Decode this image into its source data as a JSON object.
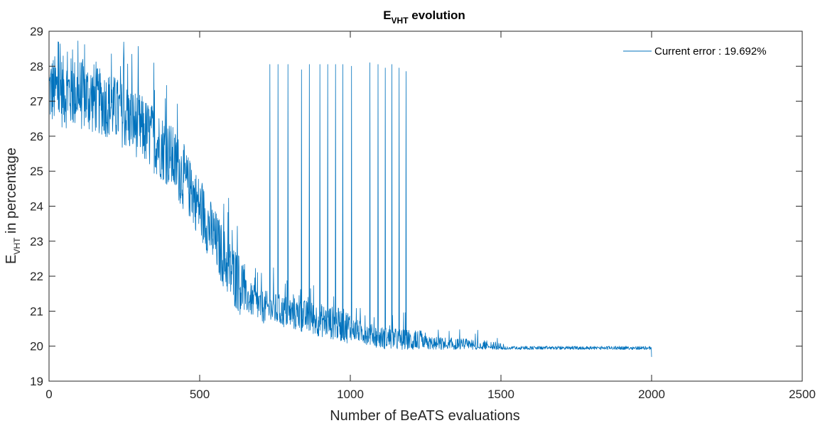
{
  "chart_data": {
    "type": "line",
    "title": {
      "main": "E",
      "sub": "VHT",
      "rest": " evolution"
    },
    "xlabel": "Number of BeATS evaluations",
    "ylabel": {
      "main": "E",
      "sub": "VHT",
      "rest": " in percentage"
    },
    "xlim": [
      0,
      2500
    ],
    "ylim": [
      19,
      29
    ],
    "xticks": [
      0,
      500,
      1000,
      1500,
      2000,
      2500
    ],
    "yticks": [
      19,
      20,
      21,
      22,
      23,
      24,
      25,
      26,
      27,
      28,
      29
    ],
    "grid": false,
    "legend": {
      "position": "top-right",
      "label": "Current error : 19.692%"
    },
    "series": [
      {
        "name": "Current error : 19.692%",
        "color": "#0072BD",
        "x_range": [
          1,
          2000
        ],
        "trend": [
          [
            0,
            27.0
          ],
          [
            100,
            26.9
          ],
          [
            200,
            26.6
          ],
          [
            300,
            26.0
          ],
          [
            400,
            25.2
          ],
          [
            450,
            24.5
          ],
          [
            500,
            23.7
          ],
          [
            550,
            22.8
          ],
          [
            600,
            21.9
          ],
          [
            650,
            21.3
          ],
          [
            700,
            21.0
          ],
          [
            800,
            20.8
          ],
          [
            900,
            20.6
          ],
          [
            1000,
            20.4
          ],
          [
            1100,
            20.15
          ],
          [
            1200,
            20.05
          ],
          [
            1300,
            20.0
          ],
          [
            1400,
            19.95
          ],
          [
            1500,
            19.85
          ],
          [
            1600,
            19.8
          ],
          [
            1700,
            19.75
          ],
          [
            1800,
            19.75
          ],
          [
            1900,
            19.72
          ],
          [
            2000,
            19.69
          ]
        ],
        "spikes": [
          [
            733,
            28.05
          ],
          [
            760,
            28.05
          ],
          [
            793,
            28.05
          ],
          [
            838,
            27.9
          ],
          [
            864,
            28.05
          ],
          [
            899,
            28.05
          ],
          [
            925,
            28.05
          ],
          [
            951,
            28.05
          ],
          [
            975,
            28.05
          ],
          [
            1004,
            28.0
          ],
          [
            1065,
            28.1
          ],
          [
            1092,
            28.05
          ],
          [
            1116,
            27.95
          ],
          [
            1138,
            28.05
          ],
          [
            1162,
            27.95
          ],
          [
            1185,
            27.85
          ]
        ],
        "final_value": 19.692
      }
    ]
  }
}
